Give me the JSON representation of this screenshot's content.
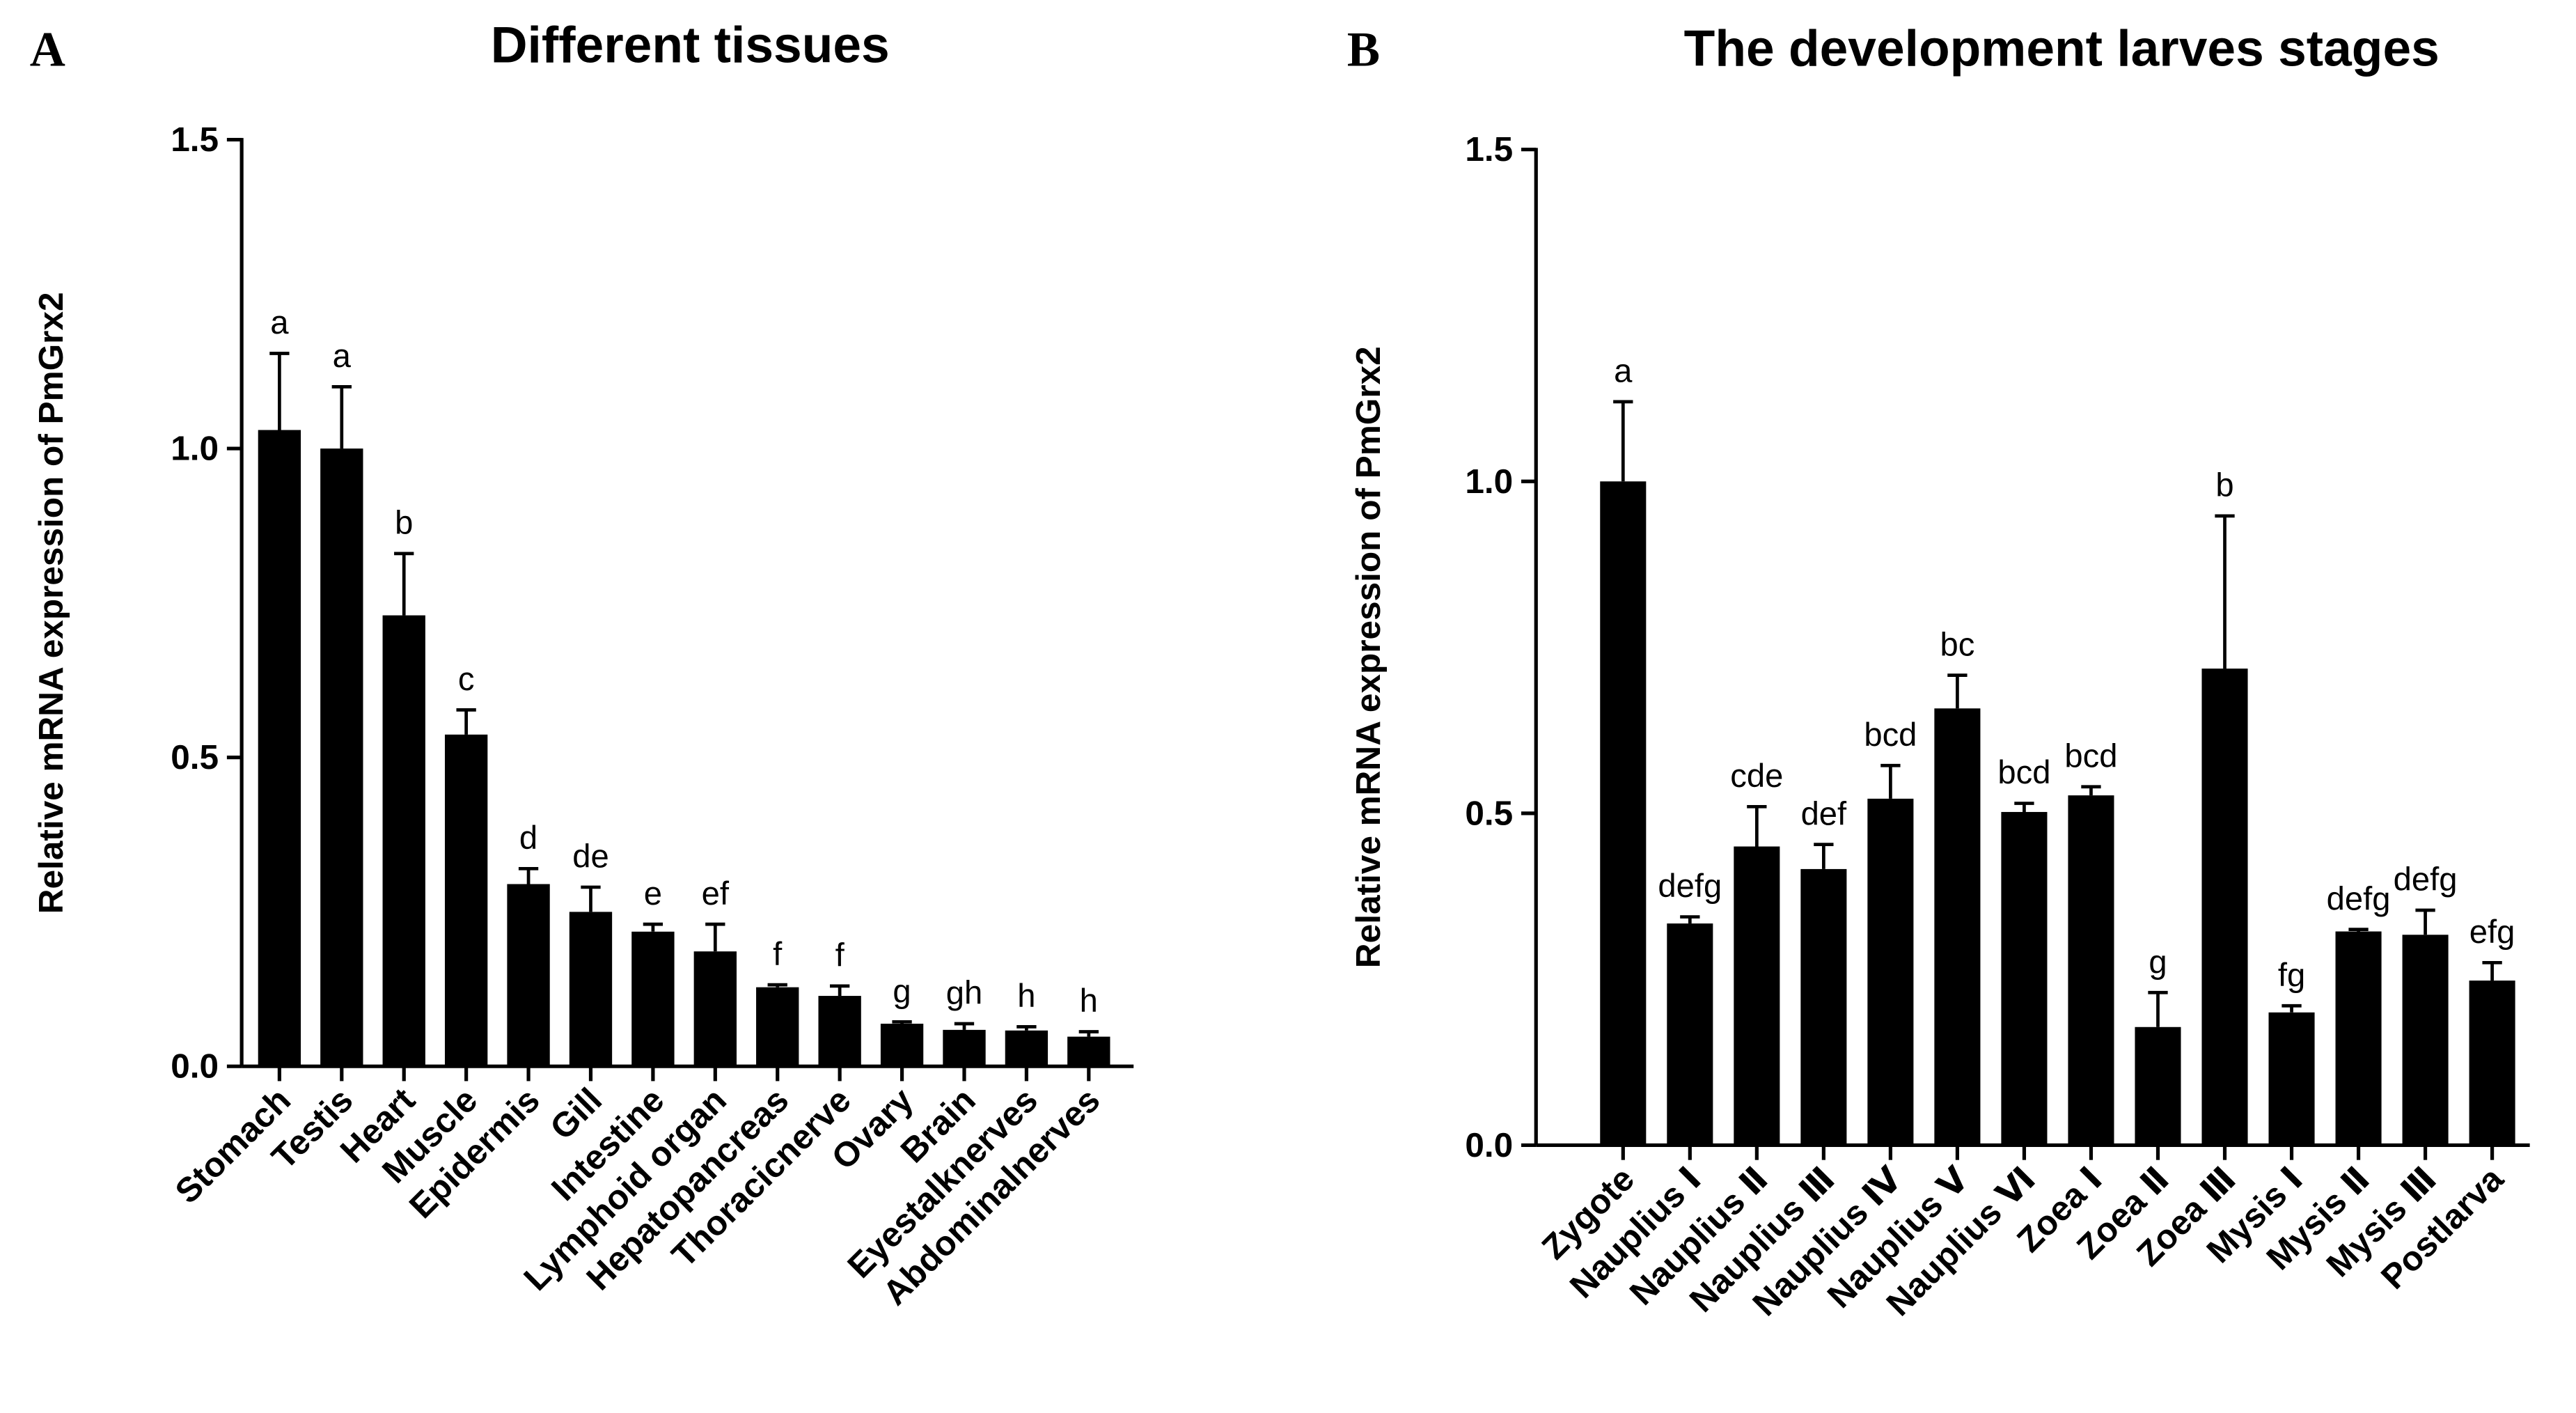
{
  "chart_data": [
    {
      "type": "bar",
      "panel_label": "A",
      "title": "Different tissues",
      "y_label": "Relative mRNA expression of PmGrx2",
      "categories": [
        "Stomach",
        "Testis",
        "Heart",
        "Muscle",
        "Epidermis",
        "Gill",
        "Intestine",
        "Lymphoid organ",
        "Hepatopancreas",
        "Thoracicnerve",
        "Ovary",
        "Brain",
        "Eyestalknerves",
        "Abdominalnerves"
      ],
      "values": [
        1.03,
        1.0,
        0.73,
        0.537,
        0.295,
        0.25,
        0.218,
        0.186,
        0.128,
        0.114,
        0.069,
        0.059,
        0.058,
        0.048
      ],
      "errors": [
        0.124,
        0.1,
        0.1,
        0.04,
        0.025,
        0.04,
        0.012,
        0.044,
        0.004,
        0.016,
        0.003,
        0.01,
        0.006,
        0.008
      ],
      "annotations": [
        "a",
        "a",
        "b",
        "c",
        "d",
        "de",
        "e",
        "ef",
        "f",
        "f",
        "g",
        "gh",
        "h",
        "h"
      ],
      "color": "#000000",
      "ylim": [
        0,
        1.5
      ],
      "yticks": [
        {
          "value": 0,
          "label": "0.0"
        },
        0.5,
        {
          "value": 1,
          "label": "1.0"
        },
        1.5
      ]
    },
    {
      "type": "bar",
      "panel_label": "B",
      "title": "The development larves stages",
      "y_label": "Relative mRNA expression of PmGrx2",
      "categories": [
        "Zygote",
        "Nauplius Ⅰ",
        "Nauplius Ⅱ",
        "Nauplius Ⅲ",
        "Nauplius Ⅳ",
        "Nauplius Ⅴ",
        "Nauplius Ⅵ",
        "Zoea Ⅰ",
        "Zoea Ⅱ",
        "Zoea Ⅲ",
        "Mysis Ⅰ",
        "Mysis Ⅱ",
        "Mysis Ⅲ",
        "Postlarva"
      ],
      "values": [
        1.0,
        0.334,
        0.45,
        0.416,
        0.522,
        0.658,
        0.502,
        0.527,
        0.178,
        0.718,
        0.2,
        0.322,
        0.317,
        0.248
      ],
      "errors": [
        0.12,
        0.01,
        0.06,
        0.037,
        0.05,
        0.05,
        0.013,
        0.013,
        0.052,
        0.23,
        0.01,
        0.003,
        0.037,
        0.027
      ],
      "annotations": [
        "a",
        "defg",
        "cde",
        "def",
        "bcd",
        "bc",
        "bcd",
        "bcd",
        "g",
        "b",
        "fg",
        "defg",
        "defg",
        "efg"
      ],
      "color": "#000000",
      "ylim": [
        0,
        1.5
      ],
      "yticks": [
        {
          "value": 0,
          "label": "0.0"
        },
        0.5,
        {
          "value": 1,
          "label": "1.0"
        },
        1.5
      ]
    }
  ]
}
